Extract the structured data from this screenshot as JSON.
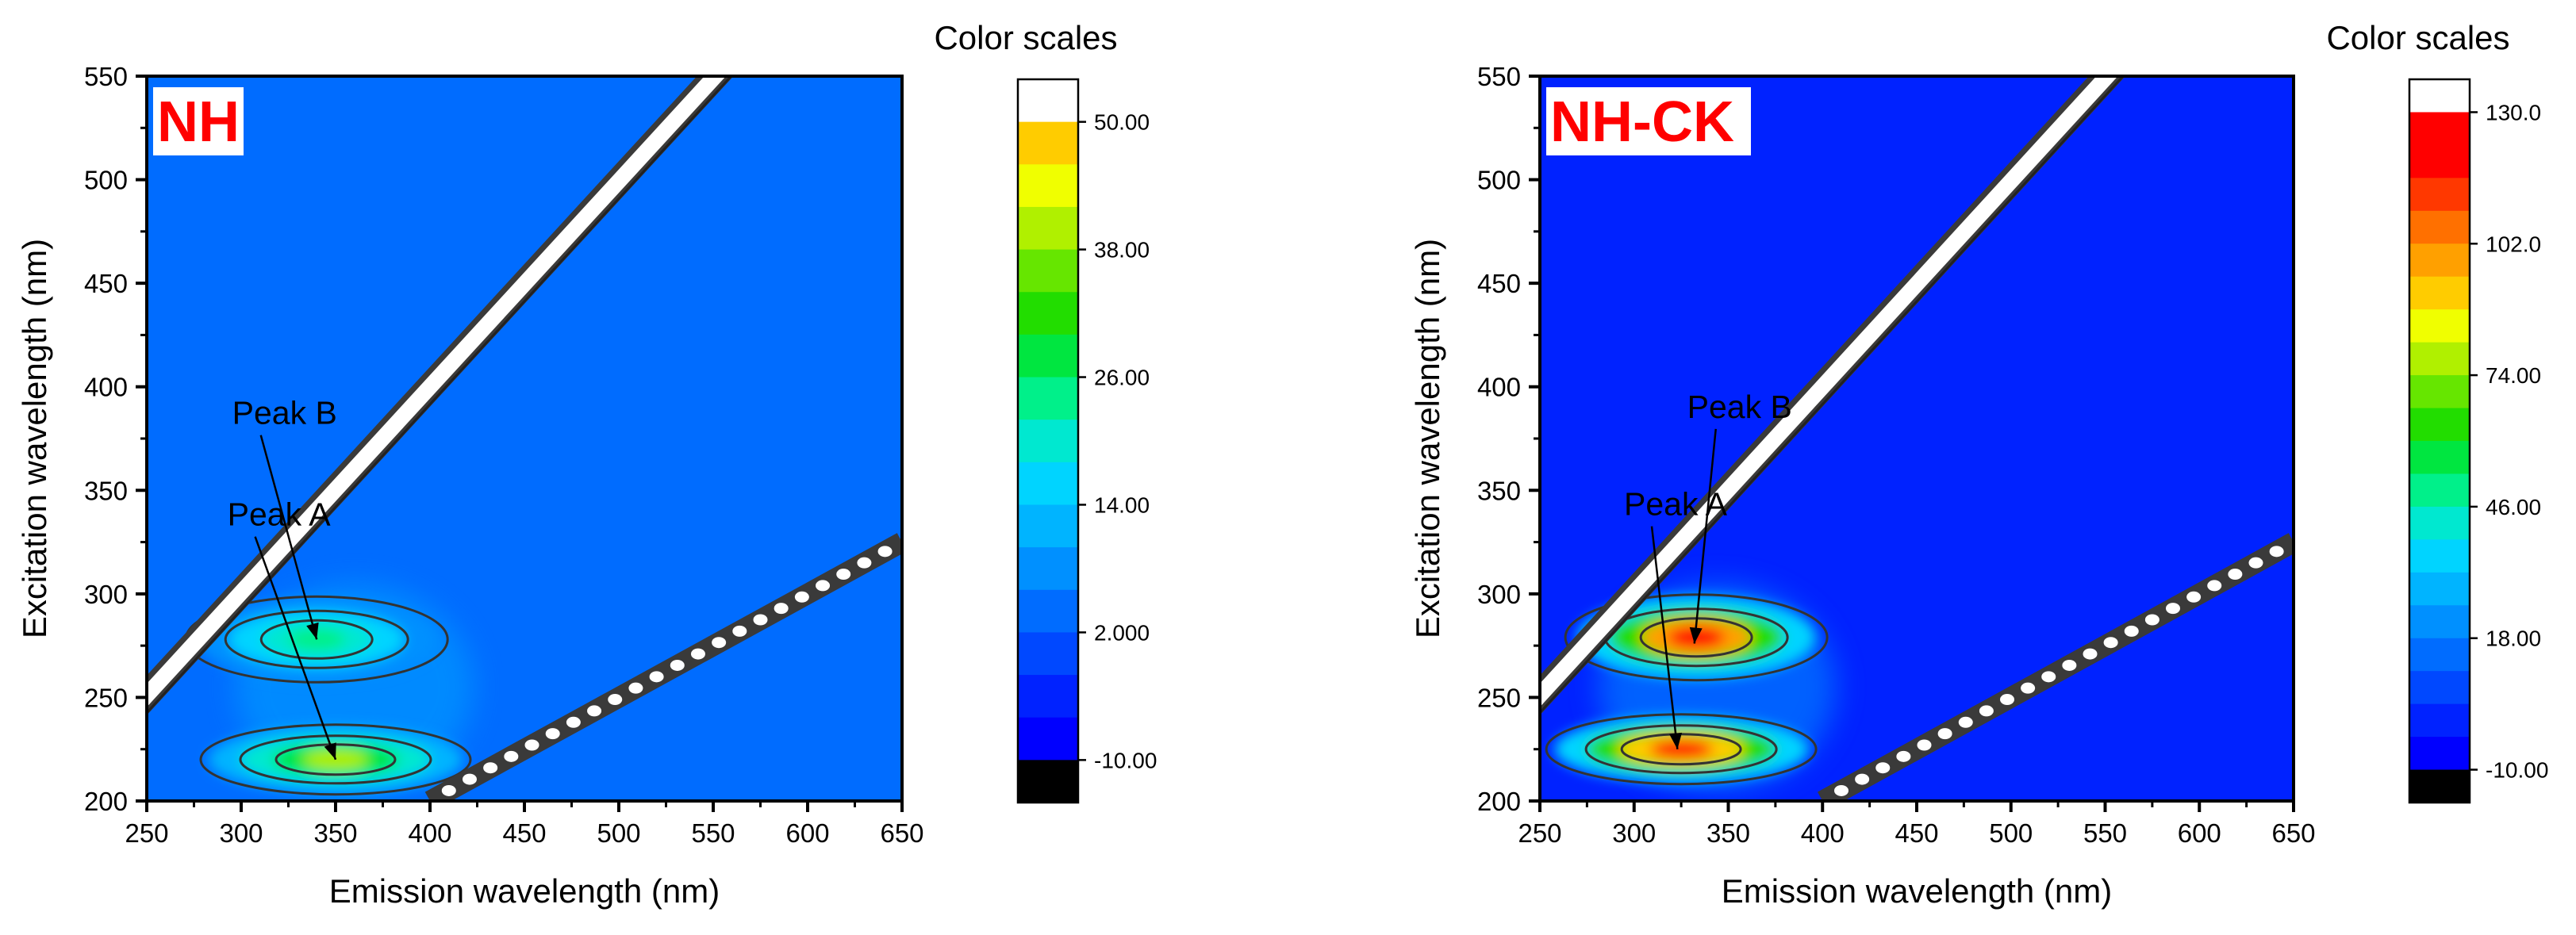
{
  "chart_data": [
    {
      "type": "heatmap",
      "panel_label": "NH",
      "xlabel": "Emission wavelength (nm)",
      "ylabel": "Excitation wavelength (nm)",
      "xlim": [
        250,
        650
      ],
      "ylim": [
        200,
        550
      ],
      "xticks": [
        "250",
        "300",
        "350",
        "400",
        "450",
        "500",
        "550",
        "600",
        "650"
      ],
      "yticks": [
        "200",
        "250",
        "300",
        "350",
        "400",
        "450",
        "500",
        "550"
      ],
      "colorbar": {
        "title": "Color scales",
        "min": -14,
        "max": 50,
        "step": 4,
        "tick_labels": [
          "-10.00",
          "2.000",
          "14.00",
          "26.00",
          "38.00",
          "50.00"
        ],
        "tick_values": [
          -10,
          2,
          14,
          26,
          38,
          50
        ]
      },
      "background_value": 4,
      "peaks": [
        {
          "name": "Peak A",
          "em": 350,
          "ex": 220,
          "value": 38
        },
        {
          "name": "Peak B",
          "em": 340,
          "ex": 278,
          "value": 24
        }
      ],
      "annotations": [
        {
          "text": "Peak A",
          "label_em": 320,
          "label_ex": 333,
          "arrow_em": 350,
          "arrow_ex": 220
        },
        {
          "text": "Peak B",
          "label_em": 323,
          "label_ex": 382,
          "arrow_em": 340,
          "arrow_ex": 278
        }
      ]
    },
    {
      "type": "heatmap",
      "panel_label": "NH-CK",
      "xlabel": "Emission wavelength (nm)",
      "ylabel": "Excitation wavelength (nm)",
      "xlim": [
        250,
        650
      ],
      "ylim": [
        200,
        550
      ],
      "xticks": [
        "250",
        "300",
        "350",
        "400",
        "450",
        "500",
        "550",
        "600",
        "650"
      ],
      "yticks": [
        "200",
        "250",
        "300",
        "350",
        "400",
        "450",
        "500",
        "550"
      ],
      "colorbar": {
        "title": "Color scales",
        "min": -18,
        "max": 130,
        "step": 7,
        "tick_labels": [
          "-10.00",
          "18.00",
          "46.00",
          "74.00",
          "102.0",
          "130.0"
        ],
        "tick_values": [
          -10,
          18,
          46,
          74,
          102,
          130
        ]
      },
      "background_value": 2,
      "peaks": [
        {
          "name": "Peak A",
          "em": 325,
          "ex": 225,
          "value": 120
        },
        {
          "name": "Peak B",
          "em": 333,
          "ex": 279,
          "value": 125
        }
      ],
      "annotations": [
        {
          "text": "Peak A",
          "label_em": 322,
          "label_ex": 338,
          "arrow_em": 323,
          "arrow_ex": 225
        },
        {
          "text": "Peak B",
          "label_em": 356,
          "label_ex": 385,
          "arrow_em": 332,
          "arrow_ex": 276
        }
      ]
    }
  ]
}
